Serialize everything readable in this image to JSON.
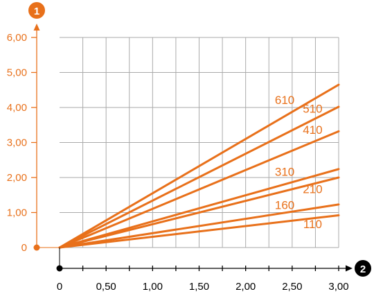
{
  "chart_data": {
    "type": "line",
    "x_axis": {
      "marker": "2",
      "ticks": [
        0,
        0.25,
        0.5,
        0.75,
        1,
        1.25,
        1.5,
        1.75,
        2,
        2.25,
        2.5,
        2.75,
        3
      ],
      "tick_labels": [
        "0",
        "0,50",
        "1,00",
        "1,50",
        "2,00",
        "2,50",
        "3,00"
      ],
      "tick_label_values": [
        0,
        0.5,
        1,
        1.5,
        2,
        2.5,
        3
      ],
      "range": [
        0,
        3
      ]
    },
    "y_axis": {
      "marker": "1",
      "tick_labels": [
        "0",
        "1,00",
        "2,00",
        "3,00",
        "4,00",
        "5,00",
        "6,00"
      ],
      "tick_label_values": [
        0,
        1,
        2,
        3,
        4,
        5,
        6
      ],
      "range": [
        0,
        6
      ]
    },
    "grid": true,
    "x": [
      0,
      3
    ],
    "series": [
      {
        "name": "610",
        "values": [
          0,
          4.65
        ],
        "label_at": [
          2.42,
          4.1
        ]
      },
      {
        "name": "510",
        "values": [
          0,
          4.02
        ],
        "label_at": [
          2.72,
          3.85
        ]
      },
      {
        "name": "410",
        "values": [
          0,
          3.32
        ],
        "label_at": [
          2.72,
          3.25
        ]
      },
      {
        "name": "310",
        "values": [
          0,
          2.24
        ],
        "label_at": [
          2.42,
          2.05
        ]
      },
      {
        "name": "210",
        "values": [
          0,
          2.0
        ],
        "label_at": [
          2.72,
          1.55
        ]
      },
      {
        "name": "160",
        "values": [
          0,
          1.23
        ],
        "label_at": [
          2.42,
          1.1
        ]
      },
      {
        "name": "110",
        "values": [
          0,
          0.92
        ],
        "label_at": [
          2.72,
          0.55
        ]
      }
    ]
  },
  "colors": {
    "accent": "#e8701a",
    "axis_x": "#000000",
    "grid": "#aaaaaa",
    "marker_x_bg": "#000000"
  }
}
